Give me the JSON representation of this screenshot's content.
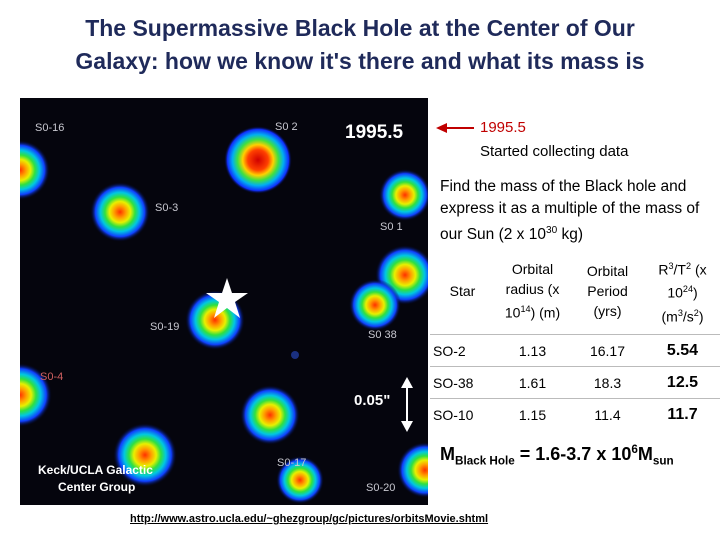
{
  "title": {
    "line1": "The Supermassive Black Hole at the Center of Our",
    "line2": "Galaxy:  how we know it's there and what its mass is"
  },
  "image": {
    "labels": [
      "S0-16",
      "S0 2",
      "S0-3",
      "S0 1",
      "S0-19",
      "S0 38",
      "S0-4",
      "S0-17",
      "S0-20"
    ],
    "epoch": "1995.5",
    "scale": "0.05\"",
    "credit": [
      "Keck/UCLA Galactic",
      "Center Group"
    ]
  },
  "annotation": {
    "epoch": "1995.5",
    "note": "Started collecting data"
  },
  "prompt": [
    {
      "t": "Find the mass of the Black hole and express it as a multiple of the mass of our Sun (2 x 10"
    },
    {
      "t": "30",
      "sup": true
    },
    {
      "t": " kg)"
    }
  ],
  "table": {
    "header": [
      [
        {
          "t": "Star"
        }
      ],
      [
        {
          "t": "Orbital radius (x 10"
        },
        {
          "t": "14",
          "sup": true
        },
        {
          "t": ") (m)"
        }
      ],
      [
        {
          "t": "Orbital Period (yrs)"
        }
      ],
      [
        {
          "t": "R"
        },
        {
          "t": "3",
          "sup": true
        },
        {
          "t": "/T"
        },
        {
          "t": "2",
          "sup": true
        },
        {
          "t": " (x 10"
        },
        {
          "t": "24",
          "sup": true
        },
        {
          "t": ") (m"
        },
        {
          "t": "3",
          "sup": true
        },
        {
          "t": "/s"
        },
        {
          "t": "2",
          "sup": true
        },
        {
          "t": ")"
        }
      ]
    ],
    "rows": [
      [
        "SO-2",
        "1.13",
        "16.17",
        "5.54"
      ],
      [
        "SO-38",
        "1.61",
        "18.3",
        "12.5"
      ],
      [
        "SO-10",
        "1.15",
        "11.4",
        "11.7"
      ]
    ]
  },
  "result": [
    {
      "t": "M"
    },
    {
      "t": "Black Hole",
      "sub": true
    },
    {
      "t": " = 1.6-3.7 x 10"
    },
    {
      "t": "6",
      "sup": true
    },
    {
      "t": "M"
    },
    {
      "t": "sun",
      "sub": true
    }
  ],
  "source_url": "http://www.astro.ucla.edu/~ghezgroup/gc/pictures/orbitsMovie.shtml"
}
